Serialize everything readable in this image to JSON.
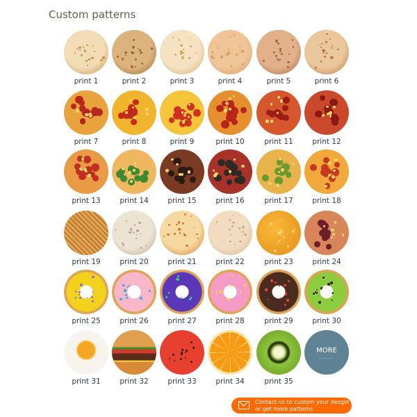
{
  "title": "Custom patterns",
  "items": [
    {
      "label": "print 1",
      "kind": "tortilla",
      "colors": [
        "#f1dcb5",
        "#c98f4a"
      ]
    },
    {
      "label": "print 2",
      "kind": "tortilla",
      "colors": [
        "#dcb37c",
        "#9a6a35"
      ]
    },
    {
      "label": "print 3",
      "kind": "tortilla",
      "colors": [
        "#f5e2c2",
        "#d6a865"
      ]
    },
    {
      "label": "print 4",
      "kind": "tortilla",
      "colors": [
        "#efc597",
        "#d99c63"
      ]
    },
    {
      "label": "print 5",
      "kind": "tortilla",
      "colors": [
        "#e2b18a",
        "#a5683d"
      ]
    },
    {
      "label": "print 6",
      "kind": "tortilla",
      "colors": [
        "#ebc79c",
        "#b57a44"
      ]
    },
    {
      "label": "print 7",
      "kind": "pizza",
      "colors": [
        "#e9a33c",
        "#b7271c"
      ]
    },
    {
      "label": "print 8",
      "kind": "pizza",
      "colors": [
        "#f0b52d",
        "#c22a1a"
      ]
    },
    {
      "label": "print 9",
      "kind": "pizza",
      "colors": [
        "#f5c43a",
        "#cf3320"
      ]
    },
    {
      "label": "print 10",
      "kind": "pizza",
      "colors": [
        "#e58f2e",
        "#b8261a"
      ]
    },
    {
      "label": "print 11",
      "kind": "pizza",
      "colors": [
        "#d5572b",
        "#9d1c16"
      ]
    },
    {
      "label": "print 12",
      "kind": "pizza",
      "colors": [
        "#c9492a",
        "#8c1813"
      ]
    },
    {
      "label": "print 13",
      "kind": "pizza",
      "colors": [
        "#e99a45",
        "#c22f22"
      ]
    },
    {
      "label": "print 14",
      "kind": "pizza",
      "colors": [
        "#f0b761",
        "#3f8a2e"
      ]
    },
    {
      "label": "print 15",
      "kind": "pizza",
      "colors": [
        "#7a3b22",
        "#2b1b14"
      ]
    },
    {
      "label": "print 16",
      "kind": "pizza",
      "colors": [
        "#a8322a",
        "#2c2a25"
      ]
    },
    {
      "label": "print 17",
      "kind": "pizza",
      "colors": [
        "#e7b34a",
        "#6b9a2e"
      ]
    },
    {
      "label": "print 18",
      "kind": "pizza",
      "colors": [
        "#f0a93a",
        "#c53a1e"
      ]
    },
    {
      "label": "print 19",
      "kind": "waffle",
      "colors": [
        "#e2a553",
        "#b9762f"
      ]
    },
    {
      "label": "print 20",
      "kind": "tortilla",
      "colors": [
        "#ece3d3",
        "#b7a58c"
      ]
    },
    {
      "label": "print 21",
      "kind": "tortilla",
      "colors": [
        "#f6d9a0",
        "#cf7a2a"
      ]
    },
    {
      "label": "print 22",
      "kind": "tortilla",
      "colors": [
        "#f1dcc1",
        "#d2b08a"
      ]
    },
    {
      "label": "print 23",
      "kind": "cheese",
      "colors": [
        "#f8b93b",
        "#e58e17"
      ]
    },
    {
      "label": "print 24",
      "kind": "pizza",
      "colors": [
        "#d9855a",
        "#6b1d2a"
      ]
    },
    {
      "label": "print 25",
      "kind": "donut",
      "colors": [
        "#f3d21e",
        "#8f6bd8"
      ]
    },
    {
      "label": "print 26",
      "kind": "donut",
      "colors": [
        "#f7b7c8",
        "#3fa3e0"
      ]
    },
    {
      "label": "print 27",
      "kind": "donut",
      "colors": [
        "#5a36b8",
        "#3fd06a"
      ]
    },
    {
      "label": "print 28",
      "kind": "donut",
      "colors": [
        "#f49bc6",
        "#f0e23c"
      ]
    },
    {
      "label": "print 29",
      "kind": "donut",
      "colors": [
        "#4a2b1f",
        "#e8473a"
      ]
    },
    {
      "label": "print 30",
      "kind": "donut",
      "colors": [
        "#8ccc3e",
        "#3b2315"
      ]
    },
    {
      "label": "print 31",
      "kind": "egg",
      "colors": [
        "#f7f4ee",
        "#f5a623"
      ]
    },
    {
      "label": "print 32",
      "kind": "burger",
      "colors": [
        "#d88a3a",
        "#5a2e1a"
      ]
    },
    {
      "label": "print 33",
      "kind": "watermelon",
      "colors": [
        "#e8402f",
        "#3d8a2a"
      ]
    },
    {
      "label": "print 34",
      "kind": "orange",
      "colors": [
        "#f89a14",
        "#fde6a8"
      ]
    },
    {
      "label": "print 35",
      "kind": "kiwi",
      "colors": [
        "#8cc43a",
        "#2d3a12"
      ]
    },
    {
      "label": "",
      "kind": "more",
      "colors": [
        "#5f8294",
        "#ffffff"
      ],
      "more_text": "MORE",
      "more_dots": "......."
    }
  ],
  "cta": {
    "line1": "Contact us to custom your desgin",
    "line2": "or get more patterns",
    "icon": "mail-icon",
    "color": "#ff6a00"
  }
}
